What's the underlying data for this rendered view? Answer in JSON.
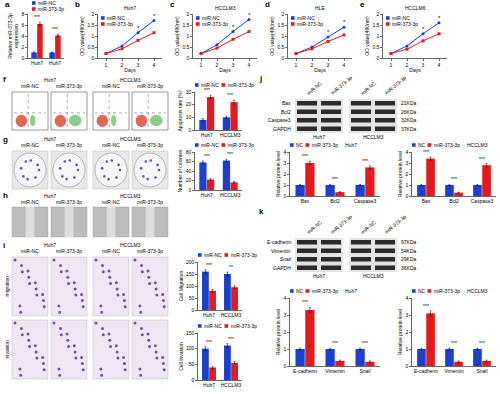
{
  "chart_data": [
    {
      "panel": "a",
      "type": "bar",
      "categories": [
        "Huh7",
        "Huh7"
      ],
      "series": [
        {
          "name": "miR-NC",
          "color": "#1c3fd1",
          "values": [
            1,
            1
          ],
          "errors": [
            0.1,
            0.1
          ]
        },
        {
          "name": "miR-373-3p",
          "color": "#e41a1c",
          "values": [
            6.2,
            4.1
          ],
          "errors": [
            0.3,
            0.25
          ]
        }
      ],
      "y_label": "Relative miR-373-3p\nexpression",
      "ylim": [
        0,
        8
      ],
      "yticks": [
        0,
        2,
        4,
        6,
        8
      ],
      "grid": false,
      "annotations": [
        "***",
        "***"
      ]
    },
    {
      "panel": "b",
      "type": "line",
      "title": "Huh7",
      "x": [
        1,
        2,
        3,
        4
      ],
      "series": [
        {
          "name": "miR-NC",
          "color": "#1c3fd1",
          "marker": "circle",
          "values": [
            0.2,
            0.55,
            1.15,
            1.7
          ]
        },
        {
          "name": "miR-373-3p",
          "color": "#e41a1c",
          "marker": "square",
          "values": [
            0.2,
            0.42,
            0.8,
            1.15
          ]
        }
      ],
      "x_label": "Days",
      "y_label": "OD value(490nm)",
      "xlim": [
        0.5,
        4.5
      ],
      "xticks": [
        1,
        2,
        3,
        4
      ],
      "ylim": [
        0,
        2
      ],
      "yticks": [
        0,
        0.5,
        1,
        1.5,
        2
      ],
      "grid": false,
      "annotations": [
        {
          "x": 3,
          "text": "*"
        },
        {
          "x": 4,
          "text": "*"
        }
      ]
    },
    {
      "panel": "c",
      "type": "line",
      "title": "HCCLM3",
      "x": [
        1,
        2,
        3,
        4
      ],
      "series": [
        {
          "name": "miR-NC",
          "color": "#1c3fd1",
          "marker": "circle",
          "values": [
            0.2,
            0.6,
            1.2,
            1.75
          ]
        },
        {
          "name": "miR-373-3p",
          "color": "#e41a1c",
          "marker": "square",
          "values": [
            0.2,
            0.45,
            0.85,
            1.2
          ]
        }
      ],
      "x_label": "Days",
      "y_label": "OD value(490nm)",
      "xlim": [
        0.5,
        4.5
      ],
      "xticks": [
        1,
        2,
        3,
        4
      ],
      "ylim": [
        0,
        2
      ],
      "yticks": [
        0,
        0.5,
        1,
        1.5,
        2
      ],
      "grid": false,
      "annotations": [
        {
          "x": 3,
          "text": "*"
        },
        {
          "x": 4,
          "text": "*"
        }
      ]
    },
    {
      "panel": "d",
      "type": "line",
      "title": "HLE",
      "x": [
        1,
        2,
        3,
        4
      ],
      "series": [
        {
          "name": "miR-NC",
          "color": "#1c3fd1",
          "marker": "circle",
          "values": [
            0.2,
            0.5,
            0.95,
            1.4
          ]
        },
        {
          "name": "miR-373-3p",
          "color": "#e41a1c",
          "marker": "square",
          "values": [
            0.2,
            0.42,
            0.75,
            1.05
          ]
        }
      ],
      "x_label": "Days",
      "y_label": "OD value(490nm)",
      "xlim": [
        0.5,
        4.5
      ],
      "xticks": [
        1,
        2,
        3,
        4
      ],
      "ylim": [
        0,
        2
      ],
      "yticks": [
        0,
        0.5,
        1,
        1.5,
        2
      ],
      "grid": false,
      "annotations": [
        {
          "x": 3,
          "text": "*"
        },
        {
          "x": 4,
          "text": "*"
        }
      ]
    },
    {
      "panel": "e",
      "type": "line",
      "title": "HCCLM6",
      "x": [
        1,
        2,
        3,
        4
      ],
      "series": [
        {
          "name": "miR-NC",
          "color": "#1c3fd1",
          "marker": "circle",
          "values": [
            0.2,
            0.55,
            1.1,
            1.6
          ]
        },
        {
          "name": "miR-373-3p",
          "color": "#e41a1c",
          "marker": "square",
          "values": [
            0.2,
            0.4,
            0.78,
            1.1
          ]
        }
      ],
      "x_label": "Days",
      "y_label": "OD value(490nm)",
      "xlim": [
        0.5,
        4.5
      ],
      "xticks": [
        1,
        2,
        3,
        4
      ],
      "ylim": [
        0,
        2
      ],
      "yticks": [
        0,
        0.5,
        1,
        1.5,
        2
      ],
      "grid": false,
      "annotations": [
        {
          "x": 3,
          "text": "*"
        },
        {
          "x": 4,
          "text": "*"
        }
      ]
    },
    {
      "type": "bar",
      "categories": [
        "Huh7",
        "HCCLM3"
      ],
      "series": [
        {
          "name": "miR-NC",
          "color": "#1c3fd1",
          "values": [
            8,
            10
          ],
          "errors": [
            1,
            1
          ]
        },
        {
          "name": "miR-373-3p",
          "color": "#e41a1c",
          "values": [
            26,
            22
          ],
          "errors": [
            1.5,
            1.5
          ]
        }
      ],
      "y_label": "Apoptosis rate (%)",
      "ylim": [
        0,
        30
      ],
      "yticks": [
        0,
        10,
        20,
        30
      ],
      "grid": false,
      "annotations": [
        "***",
        "***"
      ]
    },
    {
      "type": "bar",
      "categories": [
        "Huh7",
        "HCCLM3"
      ],
      "series": [
        {
          "name": "miR-NC",
          "color": "#1c3fd1",
          "values": [
            58,
            62
          ],
          "errors": [
            3,
            3
          ]
        },
        {
          "name": "miR-373-3p",
          "color": "#e41a1c",
          "values": [
            22,
            16
          ],
          "errors": [
            2,
            2
          ]
        }
      ],
      "y_label": "Number of colonies",
      "ylim": [
        0,
        80
      ],
      "yticks": [
        0,
        20,
        40,
        60,
        80
      ],
      "grid": false,
      "annotations": [
        "***",
        "***"
      ]
    },
    {
      "type": "bar",
      "categories": [
        "Huh7",
        "HCCLM3"
      ],
      "series": [
        {
          "name": "miR-NC",
          "color": "#1c3fd1",
          "values": [
            160,
            150
          ],
          "errors": [
            8,
            8
          ]
        },
        {
          "name": "miR-373-3p",
          "color": "#e41a1c",
          "values": [
            80,
            95
          ],
          "errors": [
            6,
            6
          ]
        }
      ],
      "y_label": "Cell Migration",
      "ylim": [
        0,
        200
      ],
      "yticks": [
        0,
        50,
        100,
        150,
        200
      ],
      "grid": false,
      "annotations": [
        "***",
        "**"
      ]
    },
    {
      "type": "bar",
      "categories": [
        "Huh7",
        "HCCLM3"
      ],
      "series": [
        {
          "name": "miR-NC",
          "color": "#1c3fd1",
          "values": [
            100,
            110
          ],
          "errors": [
            6,
            6
          ]
        },
        {
          "name": "miR-373-3p",
          "color": "#e41a1c",
          "values": [
            40,
            55
          ],
          "errors": [
            4,
            4
          ]
        }
      ],
      "y_label": "Cell Invasion",
      "ylim": [
        0,
        150
      ],
      "yticks": [
        0,
        50,
        100,
        150
      ],
      "grid": false,
      "annotations": [
        "***",
        "***"
      ]
    },
    {
      "type": "bar",
      "title": "Huh7",
      "categories": [
        "Bax",
        "Bcl2",
        "Caspase3"
      ],
      "series": [
        {
          "name": "NC",
          "color": "#1c3fd1",
          "values": [
            1,
            1,
            1
          ],
          "errors": [
            0.05,
            0.05,
            0.05
          ]
        },
        {
          "name": "miR-373-3p",
          "color": "#e41a1c",
          "values": [
            3,
            0.35,
            2.6
          ],
          "errors": [
            0.15,
            0.05,
            0.15
          ]
        }
      ],
      "y_label": "Relative protein level",
      "ylim": [
        0,
        4
      ],
      "yticks": [
        0,
        1,
        2,
        3,
        4
      ],
      "grid": false,
      "annotations": [
        "***",
        "***",
        "***"
      ]
    },
    {
      "type": "bar",
      "title": "HCCLM3",
      "categories": [
        "Bax",
        "Bcl2",
        "Caspase3"
      ],
      "series": [
        {
          "name": "NC",
          "color": "#1c3fd1",
          "values": [
            1,
            1,
            1
          ],
          "errors": [
            0.05,
            0.05,
            0.05
          ]
        },
        {
          "name": "miR-373-3p",
          "color": "#e41a1c",
          "values": [
            3.4,
            0.3,
            2.8
          ],
          "errors": [
            0.15,
            0.05,
            0.15
          ]
        }
      ],
      "y_label": "Relative protein level",
      "ylim": [
        0,
        4
      ],
      "yticks": [
        0,
        1,
        2,
        3,
        4
      ],
      "grid": false,
      "annotations": [
        "***",
        "***",
        "***"
      ]
    },
    {
      "type": "bar",
      "title": "Huh7",
      "categories": [
        "E-cadherin",
        "Vimentin",
        "Snail"
      ],
      "series": [
        {
          "name": "NC",
          "color": "#1c3fd1",
          "values": [
            1,
            1,
            1
          ],
          "errors": [
            0.05,
            0.05,
            0.05
          ]
        },
        {
          "name": "miR-373-3p",
          "color": "#e41a1c",
          "values": [
            3.3,
            0.3,
            0.25
          ],
          "errors": [
            0.15,
            0.05,
            0.05
          ]
        }
      ],
      "y_label": "Relative protein level",
      "ylim": [
        0,
        4
      ],
      "yticks": [
        0,
        1,
        2,
        3,
        4
      ],
      "grid": false,
      "annotations": [
        "***",
        "***",
        "***"
      ]
    },
    {
      "type": "bar",
      "title": "HCCLM3",
      "categories": [
        "E-cadherin",
        "Vimentin",
        "Snail"
      ],
      "series": [
        {
          "name": "NC",
          "color": "#1c3fd1",
          "values": [
            1,
            1,
            1
          ],
          "errors": [
            0.05,
            0.05,
            0.05
          ]
        },
        {
          "name": "miR-373-3p",
          "color": "#e41a1c",
          "values": [
            3.1,
            0.25,
            0.3
          ],
          "errors": [
            0.15,
            0.05,
            0.05
          ]
        }
      ],
      "y_label": "Relative protein level",
      "ylim": [
        0,
        4
      ],
      "yticks": [
        0,
        1,
        2,
        3,
        4
      ],
      "grid": false,
      "annotations": [
        "***",
        "***",
        "***"
      ]
    }
  ],
  "image_panels": [
    {
      "panel": "f",
      "groups": [
        "Huh7",
        "HCCLM3"
      ],
      "conditions": [
        "miR-NC",
        "miR-373-3p"
      ]
    },
    {
      "panel": "g",
      "groups": [
        "Huh7",
        "HCCLM3"
      ],
      "conditions": [
        "miR-NC",
        "miR-373-3p"
      ]
    },
    {
      "panel": "h",
      "groups": [
        "Huh7",
        "HCCLM3"
      ],
      "conditions": [
        "miR-NC",
        "miR-373-3p"
      ]
    },
    {
      "panel": "i",
      "groups": [
        "Huh7",
        "HCCLM3"
      ],
      "conditions": [
        "miR-NC",
        "miR-373-3p"
      ],
      "rows": [
        "migration",
        "invasion"
      ]
    }
  ],
  "blots": [
    {
      "panel": "j",
      "groups": [
        "Huh7",
        "HCCLM3"
      ],
      "lanes": [
        "miR-NC",
        "miR-373-3p"
      ],
      "bands": [
        {
          "label": "Bax",
          "size": "21KDa"
        },
        {
          "label": "Bcl2",
          "size": "26KDa"
        },
        {
          "label": "Caspase3",
          "size": "32KDa"
        },
        {
          "label": "GAPDH",
          "size": "37KDa"
        }
      ]
    },
    {
      "panel": "k",
      "groups": [
        "Huh7",
        "HCCLM3"
      ],
      "lanes": [
        "miR-NC",
        "miR-373-3p"
      ],
      "bands": [
        {
          "label": "E-cadherin",
          "size": "97KDa"
        },
        {
          "label": "Vimentin",
          "size": "54KDa"
        },
        {
          "label": "Snail",
          "size": "29KDa"
        },
        {
          "label": "GAPDH",
          "size": "36KDa"
        }
      ]
    }
  ]
}
